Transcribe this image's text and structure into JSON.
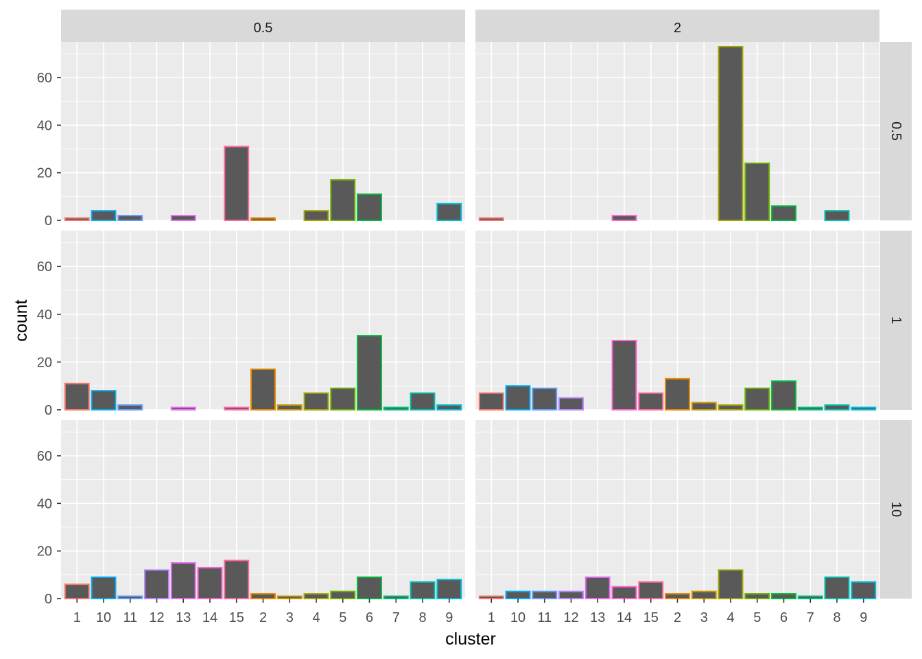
{
  "chart_data": {
    "type": "bar",
    "xlabel": "cluster",
    "ylabel": "count",
    "ylim": [
      0,
      75
    ],
    "yticks": [
      0,
      20,
      40,
      60
    ],
    "grid": true,
    "categories": [
      "1",
      "10",
      "11",
      "12",
      "13",
      "14",
      "15",
      "2",
      "3",
      "4",
      "5",
      "6",
      "7",
      "8",
      "9"
    ],
    "category_colors": {
      "1": "#F8766D",
      "10": "#00B0F6",
      "11": "#619CFF",
      "12": "#B983FF",
      "13": "#E76BF3",
      "14": "#FD61D1",
      "15": "#FF67A4",
      "2": "#E58700",
      "3": "#C99800",
      "4": "#A3A500",
      "5": "#6BB100",
      "6": "#00BA38",
      "7": "#00BF7D",
      "8": "#00C0AF",
      "9": "#00BCD8"
    },
    "bar_fill": "#595959",
    "col_strips": [
      "0.5",
      "2"
    ],
    "row_strips": [
      "0.5",
      "1",
      "10"
    ],
    "panels": [
      {
        "row": "0.5",
        "col": "0.5",
        "values": {
          "1": 1,
          "10": 4,
          "11": 2,
          "13": 2,
          "15": 31,
          "2": 1,
          "4": 4,
          "5": 17,
          "6": 11,
          "9": 7
        }
      },
      {
        "row": "0.5",
        "col": "2",
        "values": {
          "1": 1,
          "14": 2,
          "4": 73,
          "5": 24,
          "6": 6,
          "8": 4
        }
      },
      {
        "row": "1",
        "col": "0.5",
        "values": {
          "1": 11,
          "10": 8,
          "11": 2,
          "13": 1,
          "15": 1,
          "2": 17,
          "3": 2,
          "4": 7,
          "5": 9,
          "6": 31,
          "7": 1,
          "8": 7,
          "9": 2
        }
      },
      {
        "row": "1",
        "col": "2",
        "values": {
          "1": 7,
          "10": 10,
          "11": 9,
          "12": 5,
          "14": 29,
          "15": 7,
          "2": 13,
          "3": 3,
          "4": 2,
          "5": 9,
          "6": 12,
          "7": 1,
          "8": 2,
          "9": 1
        }
      },
      {
        "row": "10",
        "col": "0.5",
        "values": {
          "1": 6,
          "10": 9,
          "11": 1,
          "12": 12,
          "13": 15,
          "14": 13,
          "15": 16,
          "2": 2,
          "3": 1,
          "4": 2,
          "5": 3,
          "6": 9,
          "7": 1,
          "8": 7,
          "9": 8
        }
      },
      {
        "row": "10",
        "col": "2",
        "values": {
          "1": 1,
          "10": 3,
          "11": 3,
          "12": 3,
          "13": 9,
          "14": 5,
          "15": 7,
          "2": 2,
          "3": 3,
          "4": 12,
          "5": 2,
          "6": 2,
          "7": 1,
          "8": 9,
          "9": 7
        }
      }
    ]
  }
}
